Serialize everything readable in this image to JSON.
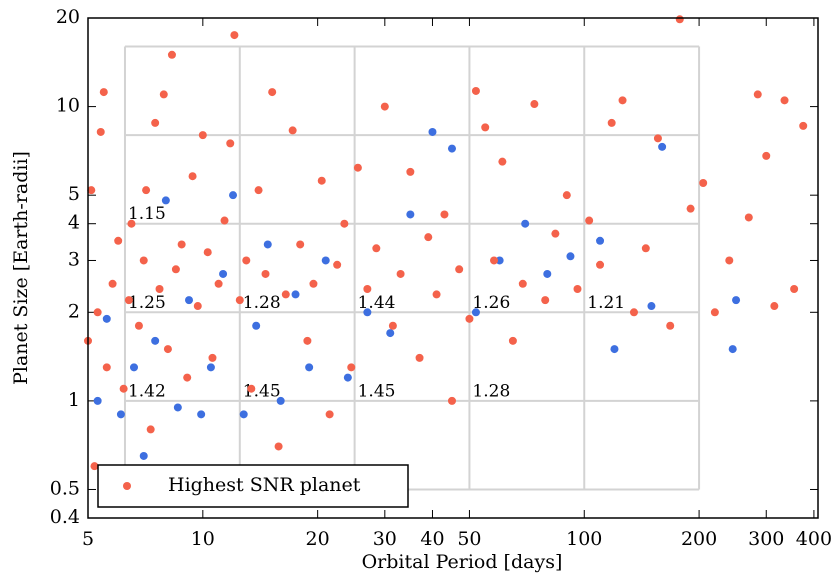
{
  "chart_data": {
    "type": "scatter",
    "xlabel": "Orbital Period [days]",
    "ylabel": "Planet Size [Earth-radii]",
    "xscale": "log",
    "yscale": "log",
    "xlim": [
      5,
      410
    ],
    "ylim": [
      0.4,
      20
    ],
    "xticks": [
      5,
      10,
      20,
      30,
      40,
      50,
      100,
      200,
      300,
      400
    ],
    "yticks": [
      0.4,
      0.5,
      1,
      2,
      3,
      4,
      5,
      10,
      20
    ],
    "grid_x": [
      6.25,
      12.5,
      25,
      50,
      100,
      200
    ],
    "grid_y": [
      0.5,
      1,
      2,
      4,
      8,
      16
    ],
    "legend_loc": "lower left",
    "annotations": [
      {
        "text": "1.15",
        "x": 6.25,
        "y": 4
      },
      {
        "text": "1.25",
        "x": 6.25,
        "y": 2
      },
      {
        "text": "1.28",
        "x": 12.5,
        "y": 2
      },
      {
        "text": "1.44",
        "x": 25,
        "y": 2
      },
      {
        "text": "1.26",
        "x": 50,
        "y": 2
      },
      {
        "text": "1.21",
        "x": 100,
        "y": 2
      },
      {
        "text": "1.42",
        "x": 6.25,
        "y": 1
      },
      {
        "text": "1.45",
        "x": 12.5,
        "y": 1
      },
      {
        "text": "1.45",
        "x": 25,
        "y": 1
      },
      {
        "text": "1.28",
        "x": 50,
        "y": 1
      }
    ],
    "series": [
      {
        "color": "#3d6fe0",
        "x": [
          5.3,
          5.6,
          6.1,
          6.6,
          7.0,
          7.5,
          8,
          8.6,
          9.2,
          9.9,
          10.5,
          11.3,
          12,
          12.8,
          13.8,
          14.8,
          16,
          17.5,
          19,
          21,
          24,
          27,
          31,
          35,
          40,
          45,
          52,
          60,
          70,
          80,
          92,
          110,
          120,
          150,
          160,
          245,
          250
        ],
        "values": [
          1.0,
          1.9,
          0.9,
          1.3,
          0.65,
          1.6,
          4.8,
          0.95,
          2.2,
          0.9,
          1.3,
          2.7,
          5.0,
          0.9,
          1.8,
          3.4,
          1.0,
          2.3,
          1.3,
          3.0,
          1.2,
          2.0,
          1.7,
          4.3,
          8.2,
          7.2,
          2.0,
          3.0,
          4.0,
          2.7,
          3.1,
          3.5,
          1.5,
          2.1,
          7.3,
          1.5,
          2.2
        ]
      },
      {
        "name": "Highest SNR planet",
        "color": "#f4624b",
        "x": [
          5,
          5.1,
          5.2,
          5.3,
          5.4,
          5.5,
          5.6,
          5.8,
          6,
          6.2,
          6.4,
          6.5,
          6.8,
          7,
          7.1,
          7.3,
          7.5,
          7.7,
          7.9,
          8.1,
          8.3,
          8.5,
          8.8,
          9.1,
          9.4,
          9.7,
          10,
          10.3,
          10.6,
          11,
          11.4,
          11.8,
          12.1,
          12.5,
          13,
          13.4,
          14,
          14.6,
          15.2,
          15.8,
          16.5,
          17.2,
          18,
          18.8,
          19.5,
          20.5,
          21.5,
          22.5,
          23.5,
          24.5,
          25.5,
          27,
          28.5,
          30,
          31.5,
          33,
          35,
          37,
          39,
          41,
          43,
          45,
          47,
          50,
          52,
          55,
          58,
          61,
          65,
          69,
          74,
          79,
          84,
          90,
          96,
          103,
          110,
          118,
          126,
          135,
          145,
          156,
          168,
          178,
          190,
          205,
          220,
          240,
          270,
          285,
          300,
          315,
          335,
          355,
          375
        ],
        "values": [
          1.6,
          5.2,
          0.6,
          2.0,
          8.2,
          11.2,
          1.3,
          2.5,
          3.5,
          1.1,
          2.2,
          4.0,
          1.8,
          3.0,
          5.2,
          0.8,
          8.8,
          2.4,
          11.0,
          1.5,
          15.0,
          2.8,
          3.4,
          1.2,
          5.8,
          2.1,
          8.0,
          3.2,
          1.4,
          2.5,
          4.1,
          7.5,
          17.5,
          2.2,
          3.0,
          1.1,
          5.2,
          2.7,
          11.2,
          0.7,
          2.3,
          8.3,
          3.4,
          1.6,
          2.5,
          5.6,
          0.9,
          2.9,
          4.0,
          1.3,
          6.2,
          2.4,
          3.3,
          10.0,
          1.8,
          2.7,
          6.0,
          1.4,
          3.6,
          2.3,
          4.3,
          1.0,
          2.8,
          1.9,
          11.3,
          8.5,
          3.0,
          6.5,
          1.6,
          2.5,
          10.2,
          2.2,
          3.7,
          5.0,
          2.4,
          4.1,
          2.9,
          8.8,
          10.5,
          2.0,
          3.3,
          7.8,
          1.8,
          19.8,
          4.5,
          5.5,
          2.0,
          3.0,
          4.2,
          11.0,
          6.8,
          2.1,
          10.5,
          2.4,
          8.6
        ]
      }
    ]
  }
}
